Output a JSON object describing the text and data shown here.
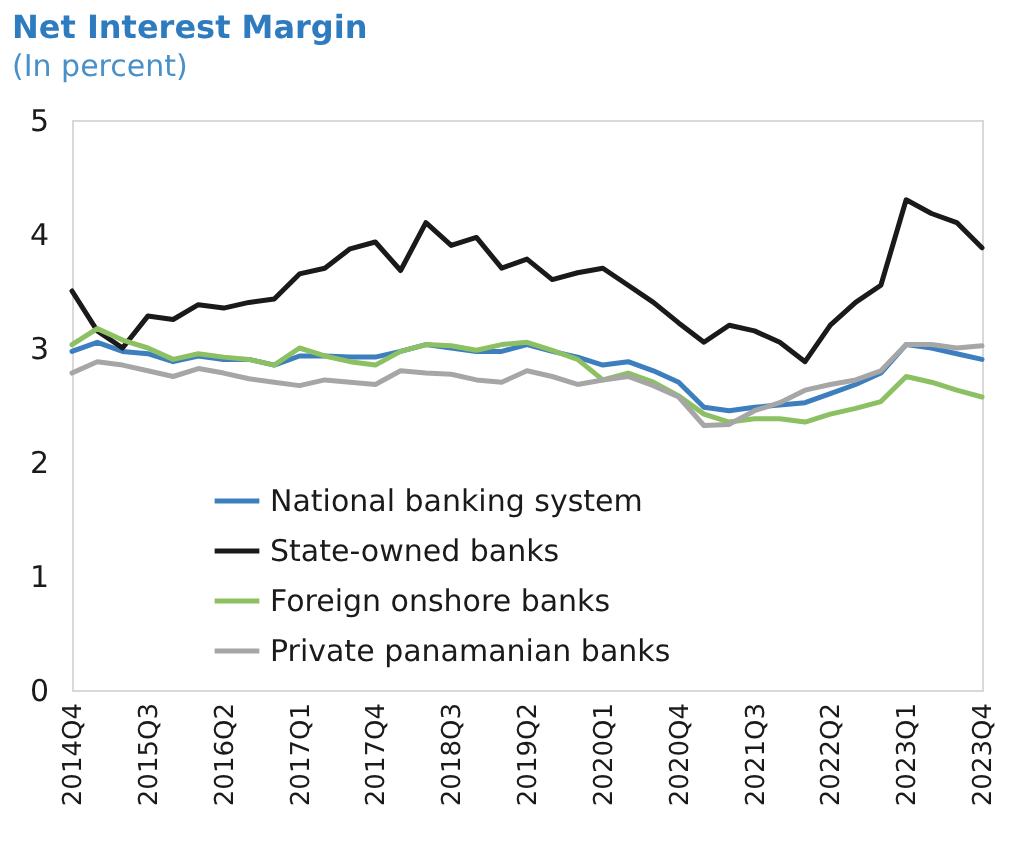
{
  "chart_data": {
    "type": "line",
    "title": "Net Interest Margin",
    "subtitle": "(In percent)",
    "categories": [
      "2014Q4",
      null,
      null,
      "2015Q3",
      null,
      null,
      "2016Q2",
      null,
      null,
      "2017Q1",
      null,
      null,
      "2017Q4",
      null,
      null,
      "2018Q3",
      null,
      null,
      "2019Q2",
      null,
      null,
      "2020Q1",
      null,
      null,
      "2020Q4",
      null,
      null,
      "2021Q3",
      null,
      null,
      "2022Q2",
      null,
      null,
      "2023Q1",
      null,
      null,
      "2023Q4"
    ],
    "ylim": [
      0,
      5
    ],
    "yticks": [
      0,
      1,
      2,
      3,
      4,
      5
    ],
    "grid": false,
    "legend": "bottom left",
    "line_style": "solid",
    "series": [
      {
        "name": "National banking system",
        "color": "#3d7ebf",
        "values": [
          2.97,
          3.05,
          2.97,
          2.95,
          2.88,
          2.93,
          2.9,
          2.9,
          2.85,
          2.93,
          2.93,
          2.92,
          2.92,
          2.97,
          3.03,
          3.0,
          2.97,
          2.97,
          3.03,
          2.97,
          2.92,
          2.85,
          2.88,
          2.8,
          2.7,
          2.48,
          2.45,
          2.48,
          2.5,
          2.52,
          2.6,
          2.68,
          2.78,
          3.03,
          3.0,
          2.95,
          2.9
        ]
      },
      {
        "name": "State-owned banks",
        "color": "#1a1a1a",
        "values": [
          3.5,
          3.15,
          3.0,
          3.28,
          3.25,
          3.38,
          3.35,
          3.4,
          3.43,
          3.65,
          3.7,
          3.87,
          3.93,
          3.68,
          4.1,
          3.9,
          3.97,
          3.7,
          3.78,
          3.6,
          3.66,
          3.7,
          3.55,
          3.4,
          3.22,
          3.05,
          3.2,
          3.15,
          3.05,
          2.88,
          3.2,
          3.4,
          3.55,
          4.3,
          4.18,
          4.1,
          3.88
        ]
      },
      {
        "name": "Foreign onshore banks",
        "color": "#8cc063",
        "values": [
          3.03,
          3.17,
          3.07,
          3.0,
          2.9,
          2.95,
          2.92,
          2.9,
          2.85,
          3.0,
          2.93,
          2.88,
          2.85,
          2.97,
          3.03,
          3.02,
          2.98,
          3.03,
          3.05,
          2.98,
          2.9,
          2.72,
          2.78,
          2.7,
          2.58,
          2.42,
          2.35,
          2.38,
          2.38,
          2.35,
          2.42,
          2.47,
          2.53,
          2.75,
          2.7,
          2.63,
          2.57
        ]
      },
      {
        "name": "Private panamanian banks",
        "color": "#a6a6a6",
        "values": [
          2.78,
          2.88,
          2.85,
          2.8,
          2.75,
          2.82,
          2.78,
          2.73,
          2.7,
          2.67,
          2.72,
          2.7,
          2.68,
          2.8,
          2.78,
          2.77,
          2.72,
          2.7,
          2.8,
          2.75,
          2.68,
          2.72,
          2.75,
          2.67,
          2.57,
          2.32,
          2.33,
          2.45,
          2.52,
          2.63,
          2.68,
          2.72,
          2.8,
          3.03,
          3.03,
          3.0,
          3.02
        ]
      }
    ]
  }
}
